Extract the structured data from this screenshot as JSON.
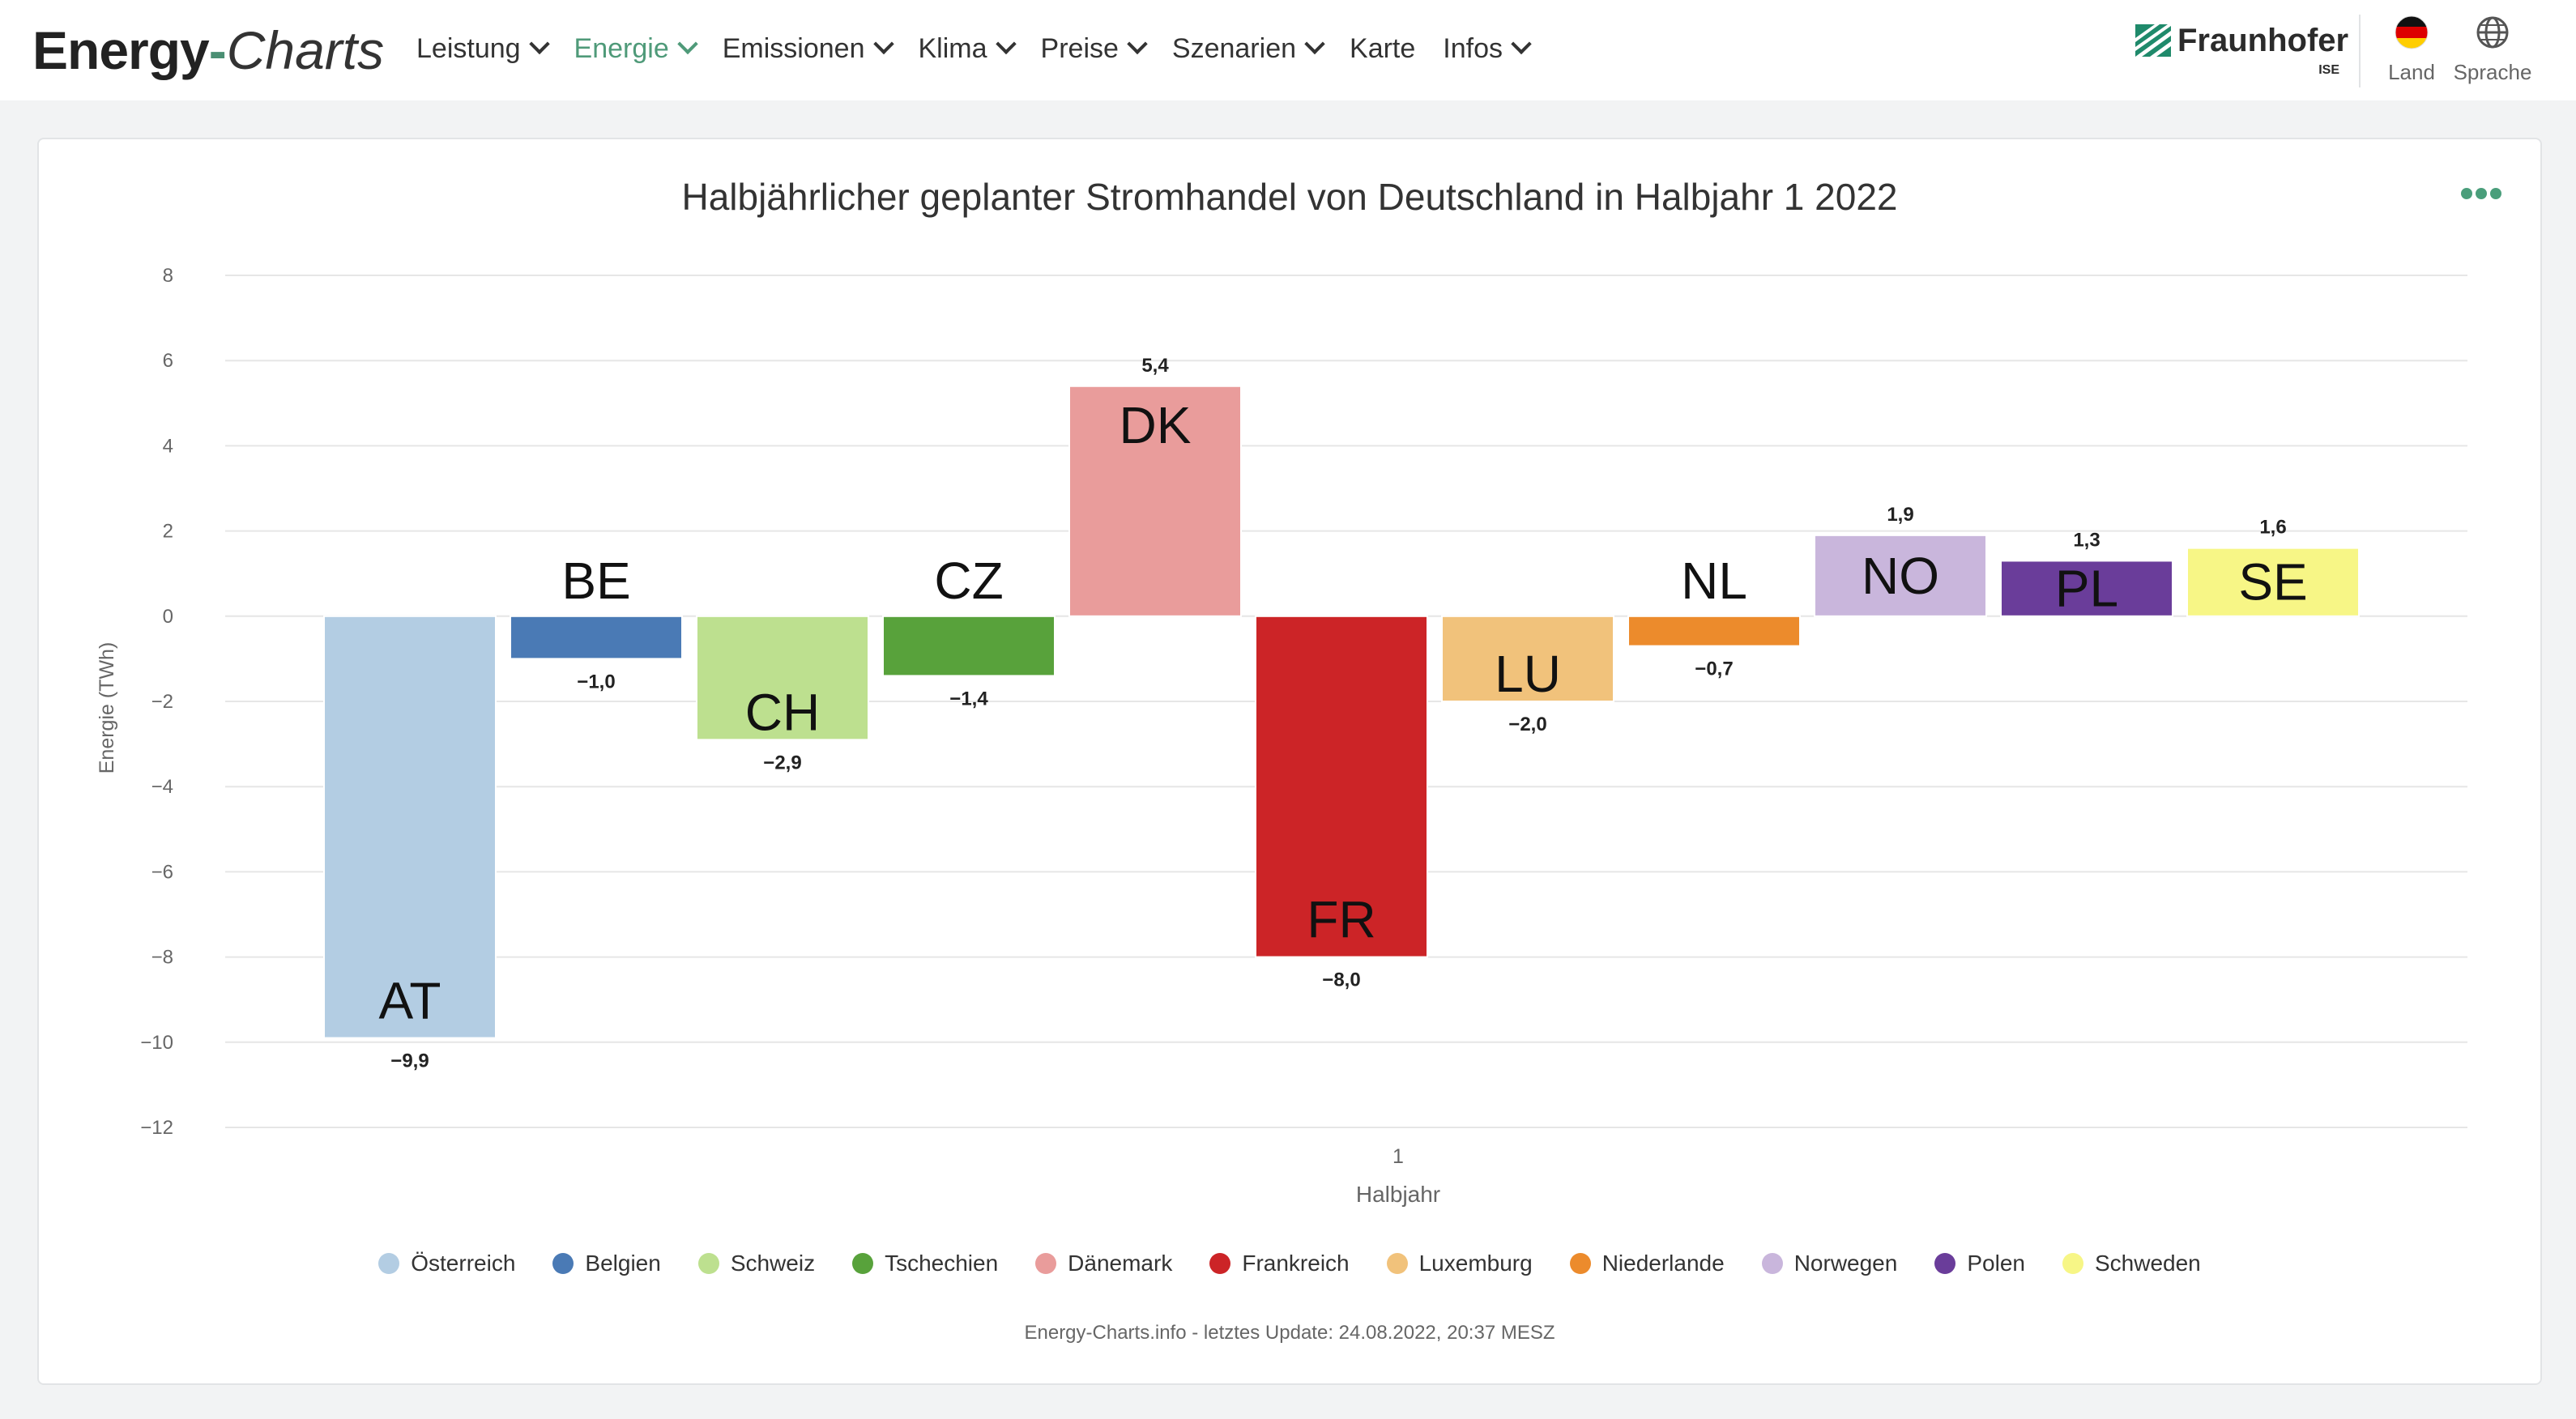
{
  "header": {
    "brand": {
      "part1": "Energy",
      "dash": "-",
      "part2": "Charts"
    },
    "nav": [
      {
        "label": "Leistung",
        "dropdown": true,
        "active": false
      },
      {
        "label": "Energie",
        "dropdown": true,
        "active": true
      },
      {
        "label": "Emissionen",
        "dropdown": true,
        "active": false
      },
      {
        "label": "Klima",
        "dropdown": true,
        "active": false
      },
      {
        "label": "Preise",
        "dropdown": true,
        "active": false
      },
      {
        "label": "Szenarien",
        "dropdown": true,
        "active": false
      },
      {
        "label": "Karte",
        "dropdown": false,
        "active": false
      },
      {
        "label": "Infos",
        "dropdown": true,
        "active": false
      }
    ],
    "partner": {
      "name": "Fraunhofer",
      "sub": "ISE"
    },
    "country_button": {
      "label": "Land",
      "icon": "germany-flag-icon"
    },
    "language_button": {
      "label": "Sprache",
      "icon": "globe-icon"
    }
  },
  "colors": {
    "accent": "#4f9a79",
    "grid": "#e6e6e6"
  },
  "footer": {
    "note": "Energy-Charts.info - letztes Update: 24.08.2022, 20:37 MESZ"
  },
  "chart_data": {
    "type": "bar",
    "title": "Halbjährlicher geplanter Stromhandel von Deutschland in Halbjahr 1 2022",
    "xlabel": "Halbjahr",
    "ylabel": "Energie (TWh)",
    "categories": [
      "1"
    ],
    "ylim": [
      -12,
      8
    ],
    "yticks": [
      8,
      6,
      4,
      2,
      0,
      -2,
      -4,
      -6,
      -8,
      -10,
      -12
    ],
    "grid": true,
    "legend_position": "bottom",
    "series": [
      {
        "name": "Österreich",
        "code": "AT",
        "values": [
          -9.9
        ],
        "value_label": "−9,9",
        "color": "#b3cde3"
      },
      {
        "name": "Belgien",
        "code": "BE",
        "values": [
          -1.0
        ],
        "value_label": "−1,0",
        "color": "#4a7ab5"
      },
      {
        "name": "Schweiz",
        "code": "CH",
        "values": [
          -2.9
        ],
        "value_label": "−2,9",
        "color": "#bde08f"
      },
      {
        "name": "Tschechien",
        "code": "CZ",
        "values": [
          -1.4
        ],
        "value_label": "−1,4",
        "color": "#58a23b"
      },
      {
        "name": "Dänemark",
        "code": "DK",
        "values": [
          5.4
        ],
        "value_label": "5,4",
        "color": "#e99c9b"
      },
      {
        "name": "Frankreich",
        "code": "FR",
        "values": [
          -8.0
        ],
        "value_label": "−8,0",
        "color": "#cc2427"
      },
      {
        "name": "Luxemburg",
        "code": "LU",
        "values": [
          -2.0
        ],
        "value_label": "−2,0",
        "color": "#f1c27b"
      },
      {
        "name": "Niederlande",
        "code": "NL",
        "values": [
          -0.7
        ],
        "value_label": "−0,7",
        "color": "#ec8b2c"
      },
      {
        "name": "Norwegen",
        "code": "NO",
        "values": [
          1.9
        ],
        "value_label": "1,9",
        "color": "#c9b6dc"
      },
      {
        "name": "Polen",
        "code": "PL",
        "values": [
          1.3
        ],
        "value_label": "1,3",
        "color": "#6a3d9a"
      },
      {
        "name": "Schweden",
        "code": "SE",
        "values": [
          1.6
        ],
        "value_label": "1,6",
        "color": "#f7f686"
      }
    ]
  }
}
